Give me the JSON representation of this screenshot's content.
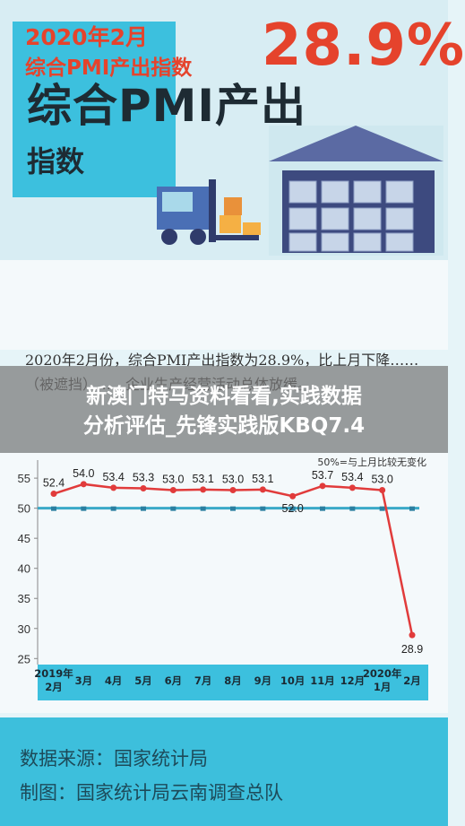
{
  "hero": {
    "title": "综合PMI产出",
    "subtitle": "指数"
  },
  "headline": {
    "date": "2020年2月",
    "label": "综合PMI产出指数",
    "value": "28.9%"
  },
  "description": "2020年2月份，综合PMI产出指数为28.9%，比上月下降……（被遮挡）……企业生产经营活动总体放缓。",
  "overlay": {
    "line1": "新澳门特马资料看看,实践数据",
    "line2": "分析评估_先锋实践版KBQ7.4"
  },
  "chart_data": {
    "type": "line",
    "title": "",
    "legend": "50%=与上月比较无变化",
    "categories": [
      "2019年\n2月",
      "3月",
      "4月",
      "5月",
      "6月",
      "7月",
      "8月",
      "9月",
      "10月",
      "11月",
      "12月",
      "2020年\n1月",
      "2月"
    ],
    "series": [
      {
        "values": [
          52.4,
          54.0,
          53.4,
          53.3,
          53.0,
          53.1,
          53.0,
          53.1,
          52.0,
          53.7,
          53.4,
          53.0,
          28.9
        ]
      }
    ],
    "data_labels": [
      "52.4",
      "54.0",
      "53.4",
      "53.3",
      "53.0",
      "53.1",
      "53.0",
      "53.1",
      "52.0",
      "53.7",
      "53.4",
      "53.0",
      "28.9"
    ],
    "reference_line": 50,
    "yticks": [
      25,
      30,
      35,
      40,
      45,
      50,
      55
    ],
    "ylim": [
      24,
      58
    ],
    "colors": {
      "line": "#e13b3b",
      "reference": "#3aa9c7",
      "axis_bar": "#3cc0de"
    }
  },
  "footer": {
    "source": "数据来源：国家统计局",
    "made_by": "制图：国家统计局云南调查总队"
  }
}
